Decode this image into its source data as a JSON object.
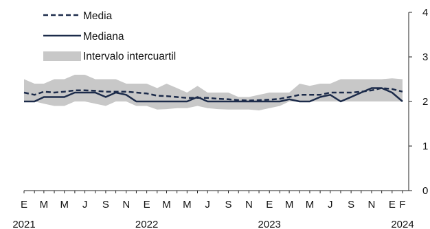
{
  "chart_data": {
    "type": "line",
    "title": "",
    "xlabel": "",
    "ylabel": "",
    "ylim": [
      0,
      4
    ],
    "y_ticks": [
      0,
      1,
      2,
      3,
      4
    ],
    "y_axis_side": "right",
    "grid": false,
    "legend_placement": "top-left",
    "x_tick_labels": [
      "E",
      "M",
      "M",
      "J",
      "S",
      "N",
      "E",
      "M",
      "M",
      "J",
      "S",
      "N",
      "E",
      "M",
      "M",
      "J",
      "S",
      "N",
      "E",
      "F"
    ],
    "x_tick_months": [
      "2021-01",
      "2021-03",
      "2021-05",
      "2021-07",
      "2021-09",
      "2021-11",
      "2022-01",
      "2022-03",
      "2022-05",
      "2022-07",
      "2022-09",
      "2022-11",
      "2023-01",
      "2023-03",
      "2023-05",
      "2023-07",
      "2023-09",
      "2023-11",
      "2024-01",
      "2024-02"
    ],
    "year_labels": [
      {
        "label": "2021",
        "month": "2021-01"
      },
      {
        "label": "2022",
        "month": "2022-01"
      },
      {
        "label": "2023",
        "month": "2023-01"
      },
      {
        "label": "2024",
        "month": "2024-02"
      }
    ],
    "x": [
      "2021-01",
      "2021-02",
      "2021-03",
      "2021-04",
      "2021-05",
      "2021-06",
      "2021-07",
      "2021-08",
      "2021-09",
      "2021-10",
      "2021-11",
      "2021-12",
      "2022-01",
      "2022-02",
      "2022-03",
      "2022-04",
      "2022-05",
      "2022-06",
      "2022-07",
      "2022-08",
      "2022-09",
      "2022-10",
      "2022-11",
      "2022-12",
      "2023-01",
      "2023-02",
      "2023-03",
      "2023-04",
      "2023-05",
      "2023-06",
      "2023-07",
      "2023-08",
      "2023-09",
      "2023-10",
      "2023-11",
      "2023-12",
      "2024-01",
      "2024-02"
    ],
    "series": [
      {
        "name": "Media",
        "style": "dashed",
        "color": "#1c2b4a",
        "values": [
          2.2,
          2.15,
          2.22,
          2.2,
          2.22,
          2.25,
          2.25,
          2.24,
          2.22,
          2.22,
          2.22,
          2.2,
          2.18,
          2.13,
          2.12,
          2.1,
          2.08,
          2.08,
          2.08,
          2.06,
          2.05,
          2.03,
          2.02,
          2.03,
          2.04,
          2.06,
          2.1,
          2.15,
          2.15,
          2.15,
          2.2,
          2.2,
          2.2,
          2.22,
          2.25,
          2.3,
          2.28,
          2.22
        ]
      },
      {
        "name": "Mediana",
        "style": "solid",
        "color": "#1c2b4a",
        "values": [
          2.0,
          2.0,
          2.1,
          2.1,
          2.1,
          2.2,
          2.2,
          2.2,
          2.1,
          2.2,
          2.15,
          2.0,
          2.0,
          2.0,
          2.0,
          2.0,
          2.0,
          2.1,
          2.0,
          2.0,
          2.0,
          2.0,
          2.0,
          2.0,
          2.0,
          2.0,
          2.05,
          2.0,
          2.0,
          2.1,
          2.15,
          2.0,
          2.1,
          2.2,
          2.3,
          2.3,
          2.2,
          2.0
        ]
      },
      {
        "name": "Intervalo intercuartil",
        "style": "band",
        "color": "#c8c8c8",
        "lower": [
          2.0,
          2.0,
          1.95,
          1.9,
          1.9,
          2.0,
          2.0,
          1.95,
          1.9,
          2.0,
          2.0,
          1.9,
          1.9,
          1.82,
          1.83,
          1.85,
          1.85,
          1.9,
          1.85,
          1.83,
          1.82,
          1.82,
          1.82,
          1.8,
          1.85,
          1.9,
          2.0,
          2.0,
          2.0,
          2.0,
          2.0,
          2.0,
          2.0,
          2.0,
          2.0,
          2.0,
          2.0,
          2.0
        ],
        "upper": [
          2.5,
          2.4,
          2.4,
          2.5,
          2.5,
          2.6,
          2.6,
          2.5,
          2.5,
          2.5,
          2.4,
          2.4,
          2.4,
          2.3,
          2.4,
          2.3,
          2.2,
          2.35,
          2.2,
          2.2,
          2.2,
          2.1,
          2.1,
          2.15,
          2.2,
          2.2,
          2.2,
          2.4,
          2.35,
          2.4,
          2.4,
          2.5,
          2.5,
          2.5,
          2.5,
          2.5,
          2.52,
          2.5
        ]
      }
    ]
  }
}
